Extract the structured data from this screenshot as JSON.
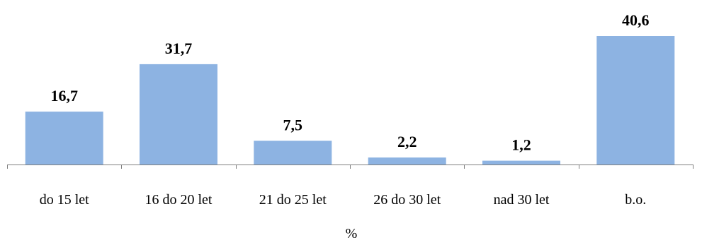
{
  "chart_data": {
    "type": "bar",
    "categories": [
      "do 15 let",
      "16 do 20 let",
      "21 do 25 let",
      "26 do 30 let",
      "nad 30 let",
      "b.o."
    ],
    "values": [
      16.7,
      31.7,
      7.5,
      2.2,
      1.2,
      40.6
    ],
    "value_labels": [
      "16,7",
      "31,7",
      "7,5",
      "2,2",
      "1,2",
      "40,6"
    ],
    "title": "",
    "xlabel": "%",
    "ylabel": "",
    "ylim": [
      0,
      40.6
    ],
    "grid": false,
    "legend": "none",
    "colors": {
      "bar": "#8db3e2",
      "axis": "#7f7f7f",
      "text": "#000000"
    }
  }
}
